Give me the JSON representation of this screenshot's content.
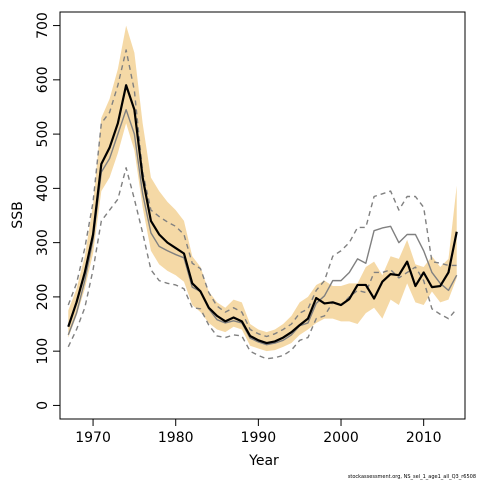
{
  "chart_data": {
    "type": "line",
    "title": "",
    "xlabel": "Year",
    "ylabel": "SSB",
    "xlim": [
      1966,
      2015
    ],
    "ylim": [
      -25,
      725
    ],
    "xticks": [
      1970,
      1980,
      1990,
      2000,
      2010
    ],
    "yticks": [
      0,
      100,
      200,
      300,
      400,
      500,
      600,
      700
    ],
    "x": [
      1967,
      1968,
      1969,
      1970,
      1971,
      1972,
      1973,
      1974,
      1975,
      1976,
      1977,
      1978,
      1979,
      1980,
      1981,
      1982,
      1983,
      1984,
      1985,
      1986,
      1987,
      1988,
      1989,
      1990,
      1991,
      1992,
      1993,
      1994,
      1995,
      1996,
      1997,
      1998,
      1999,
      2000,
      2001,
      2002,
      2003,
      2004,
      2005,
      2006,
      2007,
      2008,
      2009,
      2010,
      2011,
      2012,
      2013,
      2014
    ],
    "confidence_band": {
      "color": "#f5d9a6",
      "lower": [
        125,
        165,
        215,
        280,
        395,
        420,
        465,
        520,
        470,
        365,
        285,
        260,
        248,
        240,
        228,
        185,
        172,
        152,
        140,
        135,
        145,
        140,
        110,
        105,
        100,
        102,
        108,
        115,
        130,
        140,
        152,
        160,
        160,
        155,
        155,
        150,
        170,
        180,
        160,
        195,
        185,
        225,
        190,
        185,
        210,
        190,
        195,
        235
      ],
      "upper": [
        175,
        215,
        275,
        370,
        530,
        565,
        620,
        700,
        650,
        520,
        420,
        395,
        375,
        360,
        340,
        275,
        255,
        210,
        190,
        180,
        195,
        190,
        150,
        140,
        135,
        140,
        150,
        165,
        190,
        200,
        222,
        230,
        220,
        220,
        225,
        225,
        255,
        265,
        240,
        275,
        270,
        305,
        260,
        255,
        275,
        255,
        270,
        405
      ]
    },
    "series": [
      {
        "role": "estimate",
        "color": "#000000",
        "style": "solid",
        "values": [
          145,
          190,
          245,
          315,
          445,
          475,
          520,
          590,
          545,
          420,
          340,
          315,
          300,
          290,
          280,
          225,
          210,
          180,
          165,
          155,
          162,
          155,
          128,
          120,
          115,
          118,
          125,
          135,
          148,
          160,
          198,
          188,
          190,
          185,
          196,
          222,
          222,
          197,
          228,
          242,
          240,
          265,
          220,
          245,
          218,
          220,
          245,
          320
        ]
      },
      {
        "role": "comparison-central",
        "color": "#808080",
        "style": "solid",
        "values": [
          130,
          170,
          230,
          305,
          430,
          455,
          500,
          545,
          500,
          390,
          318,
          293,
          285,
          278,
          272,
          218,
          210,
          178,
          158,
          152,
          156,
          152,
          124,
          117,
          112,
          115,
          120,
          130,
          147,
          152,
          188,
          202,
          230,
          230,
          245,
          270,
          262,
          322,
          327,
          330,
          300,
          315,
          315,
          285,
          245,
          225,
          212,
          240
        ]
      },
      {
        "role": "comparison-upper",
        "color": "#808080",
        "style": "dashed",
        "values": [
          185,
          225,
          290,
          375,
          520,
          540,
          590,
          655,
          580,
          430,
          360,
          348,
          338,
          330,
          315,
          262,
          252,
          208,
          183,
          172,
          180,
          172,
          140,
          132,
          127,
          132,
          140,
          150,
          170,
          178,
          212,
          230,
          275,
          285,
          300,
          328,
          328,
          385,
          390,
          395,
          360,
          385,
          385,
          365,
          265,
          262,
          258,
          258
        ]
      },
      {
        "role": "comparison-lower",
        "color": "#808080",
        "style": "dashed",
        "values": [
          108,
          140,
          180,
          250,
          340,
          360,
          380,
          438,
          380,
          318,
          250,
          230,
          225,
          222,
          215,
          180,
          178,
          148,
          128,
          125,
          130,
          128,
          100,
          92,
          86,
          88,
          92,
          102,
          120,
          125,
          160,
          165,
          190,
          185,
          200,
          212,
          208,
          245,
          245,
          250,
          235,
          245,
          255,
          230,
          178,
          168,
          160,
          178
        ]
      }
    ],
    "credit": "stockassessment.org, NS_sel_1_age1_all_Q3_r6508"
  }
}
